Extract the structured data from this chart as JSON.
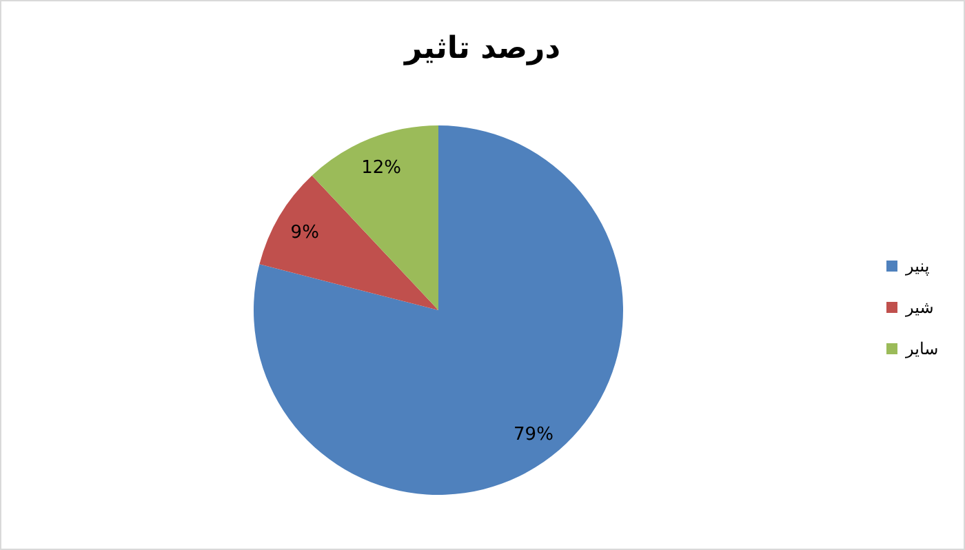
{
  "chart_data": {
    "type": "pie",
    "title": "درصد تاثیر",
    "categories": [
      "پنیر",
      "شیر",
      "سایر"
    ],
    "values": [
      79,
      9,
      12
    ],
    "colors": [
      "#4f81bd",
      "#c0504d",
      "#9bbb59"
    ],
    "value_labels": [
      "79%",
      "9%",
      "12%"
    ],
    "legend": "right"
  }
}
